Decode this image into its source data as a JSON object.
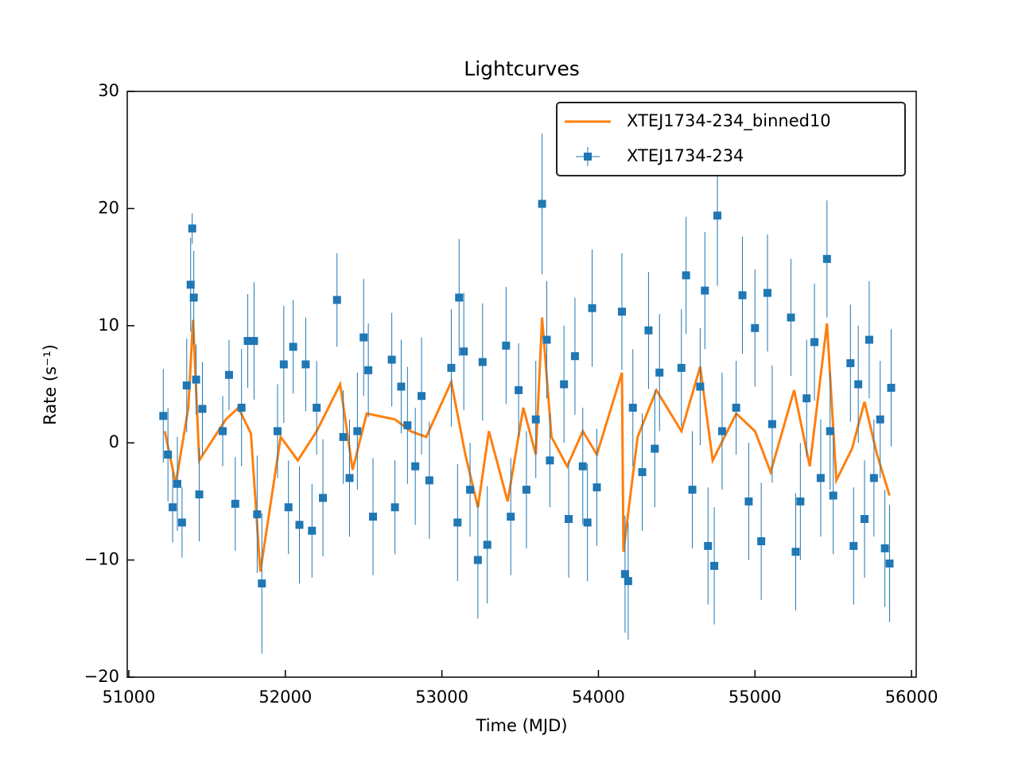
{
  "chart_data": {
    "type": "errorbar",
    "title": "Lightcurves",
    "x_label": "Time (MJD)",
    "y_label": "Rate (s⁻¹)",
    "xlim": [
      50990,
      56030
    ],
    "ylim": [
      -20,
      30
    ],
    "xticks": [
      51000,
      52000,
      53000,
      54000,
      55000,
      56000
    ],
    "yticks": [
      {
        "value": -20,
        "label": "−20"
      },
      {
        "value": -10,
        "label": "−10"
      },
      0,
      10,
      20,
      30
    ],
    "legend": "upper right",
    "series": [
      {
        "name": "XTEJ1734-234_binned10",
        "color": "#ff7f0e",
        "style": "line",
        "x": [
          51230,
          51300,
          51380,
          51410,
          51450,
          51620,
          51700,
          51780,
          51840,
          51970,
          52080,
          52200,
          52350,
          52430,
          52520,
          52700,
          52800,
          52900,
          53060,
          53150,
          53230,
          53300,
          53420,
          53520,
          53600,
          53640,
          53700,
          53800,
          53900,
          53990,
          54150,
          54160,
          54250,
          54370,
          54530,
          54650,
          54730,
          54880,
          55000,
          55100,
          55250,
          55350,
          55460,
          55520,
          55620,
          55700,
          55780,
          55860
        ],
        "values": [
          1,
          -3.5,
          3,
          10.5,
          -1.5,
          2,
          3,
          0.8,
          -11,
          0.5,
          -1.5,
          1,
          5,
          -2.3,
          2.5,
          2,
          1,
          0.5,
          5.2,
          -1,
          -5.5,
          1,
          -5,
          3,
          -1,
          10.7,
          0.5,
          -2,
          1,
          -1,
          6,
          -9.3,
          0.5,
          4.5,
          1,
          6.5,
          -1.5,
          2.5,
          1,
          -2.5,
          4.5,
          -2,
          10.2,
          -3.2,
          -0.5,
          3.5,
          -1,
          -4.5
        ]
      },
      {
        "name": "XTEJ1734-234",
        "color": "#1f77b4",
        "style": "errorbar",
        "x": [
          51220,
          51250,
          51280,
          51310,
          51340,
          51370,
          51395,
          51405,
          51415,
          51430,
          51450,
          51470,
          51600,
          51640,
          51680,
          51720,
          51760,
          51800,
          51820,
          51850,
          51950,
          51990,
          52020,
          52050,
          52090,
          52130,
          52170,
          52200,
          52240,
          52330,
          52370,
          52410,
          52460,
          52500,
          52530,
          52560,
          52680,
          52700,
          52740,
          52780,
          52830,
          52870,
          52920,
          53060,
          53100,
          53110,
          53140,
          53180,
          53230,
          53260,
          53290,
          53410,
          53440,
          53490,
          53540,
          53600,
          53640,
          53670,
          53690,
          53780,
          53810,
          53850,
          53900,
          53930,
          53960,
          53990,
          54150,
          54170,
          54190,
          54220,
          54280,
          54320,
          54360,
          54390,
          54530,
          54560,
          54600,
          54650,
          54680,
          54700,
          54740,
          54760,
          54790,
          54880,
          54920,
          54960,
          55000,
          55040,
          55080,
          55110,
          55230,
          55260,
          55290,
          55330,
          55380,
          55420,
          55460,
          55480,
          55500,
          55610,
          55630,
          55660,
          55700,
          55730,
          55760,
          55800,
          55830,
          55860,
          55870
        ],
        "values": [
          2.3,
          -1,
          -5.5,
          -3.5,
          -6.8,
          4.9,
          13.5,
          18.3,
          12.4,
          5.4,
          -4.4,
          2.9,
          1,
          5.8,
          -5.2,
          3,
          8.7,
          8.7,
          -6.1,
          -12,
          1,
          6.7,
          -5.5,
          8.2,
          -7,
          6.7,
          -7.5,
          3,
          -4.7,
          12.2,
          0.5,
          -3,
          1,
          9,
          6.2,
          -6.3,
          7.1,
          -5.5,
          4.8,
          1.5,
          -2,
          4,
          -3.2,
          6.4,
          -6.8,
          12.4,
          7.8,
          -4,
          -10,
          6.9,
          -8.7,
          8.3,
          -6.3,
          4.5,
          -4,
          2,
          20.4,
          8.8,
          -1.5,
          5,
          -6.5,
          7.4,
          -2,
          -6.8,
          11.5,
          -3.8,
          11.2,
          -11.2,
          -11.8,
          3,
          -2.5,
          9.6,
          -0.5,
          6,
          6.4,
          14.3,
          -4,
          4.8,
          13,
          -8.8,
          -10.5,
          19.4,
          1,
          3,
          12.6,
          -5,
          9.8,
          -8.4,
          12.8,
          1.6,
          10.7,
          -9.3,
          -5,
          3.8,
          8.6,
          -3,
          15.7,
          1,
          -4.5,
          6.8,
          -8.8,
          5,
          -6.5,
          8.8,
          -3,
          2,
          -9,
          -10.3,
          4.7
        ],
        "errors": [
          4,
          4,
          3,
          4,
          3,
          4,
          4,
          1.3,
          4,
          3,
          4,
          4,
          3,
          3,
          4,
          5,
          4,
          5,
          5,
          6,
          4,
          5,
          4,
          4,
          5,
          4,
          4,
          4,
          5,
          4,
          4,
          5,
          5,
          5,
          4,
          5,
          4,
          4,
          4,
          5,
          5,
          5,
          5,
          5,
          5,
          5,
          5,
          4,
          5,
          5,
          5,
          5,
          5,
          4,
          5,
          5,
          6,
          5,
          4,
          5,
          5,
          5,
          5,
          5,
          5,
          5,
          5,
          5,
          5,
          5,
          5,
          5,
          5,
          5,
          5,
          5,
          5,
          5,
          5,
          5,
          5,
          6,
          5,
          4,
          5,
          5,
          5,
          5,
          5,
          5,
          5,
          5,
          5,
          5,
          5,
          5,
          5,
          5,
          5,
          5,
          5,
          5,
          5,
          5,
          5,
          5,
          5,
          5,
          5
        ]
      }
    ]
  }
}
